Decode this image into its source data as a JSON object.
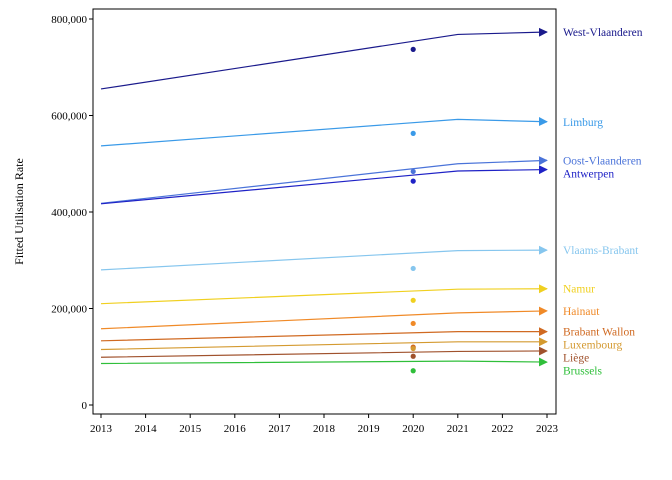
{
  "chart_data": {
    "type": "line",
    "ylabel": "Fitted Utilisation Rate",
    "xlabel": "",
    "xlim": [
      2013,
      2023
    ],
    "ylim": [
      0,
      800000
    ],
    "x_ticks": [
      "2013",
      "2014",
      "2015",
      "2016",
      "2017",
      "2018",
      "2019",
      "2020",
      "2021",
      "2022",
      "2023"
    ],
    "y_ticks": [
      {
        "value": 0,
        "label": "0"
      },
      {
        "value": 200000,
        "label": "200,000"
      },
      {
        "value": 400000,
        "label": "400,000"
      },
      {
        "value": 600000,
        "label": "600,000"
      },
      {
        "value": 800000,
        "label": "800,000"
      }
    ],
    "grid": false,
    "legend": "direct labels at line ends (right)",
    "series": [
      {
        "name": "West-Vlaanderen",
        "color": "#1a1a8c",
        "x": [
          2013,
          2021,
          2023
        ],
        "values": [
          655000,
          768000,
          773000
        ],
        "observed": {
          "x": 2020,
          "y": 737000
        }
      },
      {
        "name": "Limburg",
        "color": "#3a9ae8",
        "x": [
          2013,
          2021,
          2023
        ],
        "values": [
          537000,
          592000,
          587000
        ],
        "observed": {
          "x": 2020,
          "y": 563000
        }
      },
      {
        "name": "Oost-Vlaanderen",
        "color": "#4a73d9",
        "x": [
          2013,
          2021,
          2023
        ],
        "values": [
          418000,
          500000,
          507000
        ],
        "observed": {
          "x": 2020,
          "y": 484000
        }
      },
      {
        "name": "Antwerpen",
        "color": "#1f22c6",
        "x": [
          2013,
          2021,
          2023
        ],
        "values": [
          417000,
          485000,
          488000
        ],
        "observed": {
          "x": 2020,
          "y": 464000
        }
      },
      {
        "name": "Vlaams-Brabant",
        "color": "#86c6ee",
        "x": [
          2013,
          2021,
          2023
        ],
        "values": [
          280000,
          320000,
          321000
        ],
        "observed": {
          "x": 2020,
          "y": 283000
        }
      },
      {
        "name": "Namur",
        "color": "#f0d020",
        "x": [
          2013,
          2021,
          2023
        ],
        "values": [
          210000,
          240000,
          241000
        ],
        "observed": {
          "x": 2020,
          "y": 217000
        }
      },
      {
        "name": "Hainaut",
        "color": "#f08a28",
        "x": [
          2013,
          2021,
          2023
        ],
        "values": [
          158000,
          191000,
          195000
        ],
        "observed": {
          "x": 2020,
          "y": 169000
        }
      },
      {
        "name": "Brabant Wallon",
        "color": "#d06a22",
        "x": [
          2013,
          2021,
          2023
        ],
        "values": [
          133000,
          152000,
          152000
        ],
        "observed": {
          "x": 2020,
          "y": 120000
        }
      },
      {
        "name": "Luxembourg",
        "color": "#d49a30",
        "x": [
          2013,
          2021,
          2023
        ],
        "values": [
          115000,
          131000,
          131000
        ],
        "observed": {
          "x": 2020,
          "y": 117000
        }
      },
      {
        "name": "Liège",
        "color": "#a0522d",
        "x": [
          2013,
          2021,
          2023
        ],
        "values": [
          99000,
          111000,
          112000
        ],
        "observed": {
          "x": 2020,
          "y": 101000
        }
      },
      {
        "name": "Brussels",
        "color": "#2fbf3a",
        "x": [
          2013,
          2021,
          2023
        ],
        "values": [
          86000,
          91000,
          89000
        ],
        "observed": {
          "x": 2020,
          "y": 71000
        }
      }
    ]
  }
}
